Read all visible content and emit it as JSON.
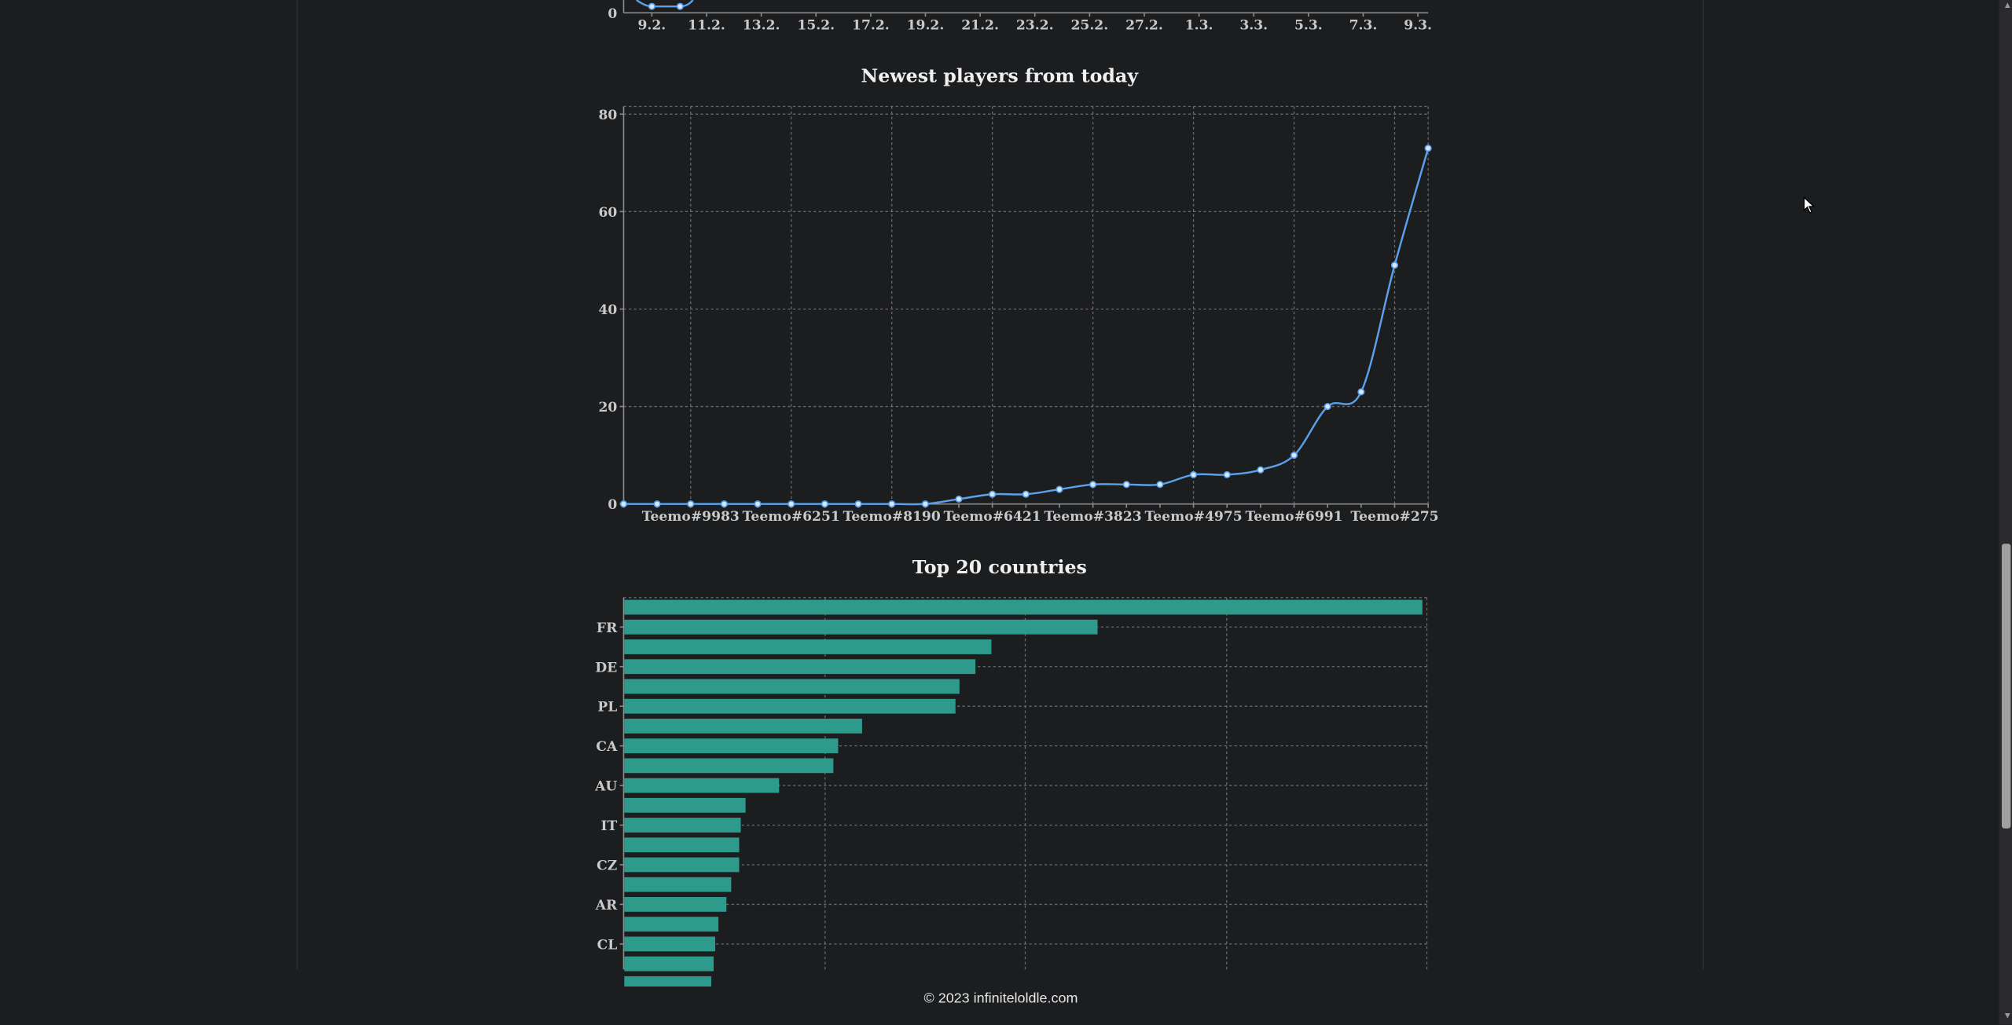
{
  "top_chart": {
    "y_tick": "0",
    "x_ticks": [
      "9.2.",
      "11.2.",
      "13.2.",
      "15.2.",
      "17.2.",
      "19.2.",
      "21.2.",
      "23.2.",
      "25.2.",
      "27.2.",
      "1.3.",
      "3.3.",
      "5.3.",
      "7.3.",
      "9.3."
    ]
  },
  "chart_data": [
    {
      "type": "line",
      "title": "Newest players from today",
      "x_tick_labels": [
        "Teemo#9983",
        "Teemo#6251",
        "Teemo#8190",
        "Teemo#6421",
        "Teemo#3823",
        "Teemo#4975",
        "Teemo#6991",
        "Teemo#275"
      ],
      "y_ticks": [
        0,
        20,
        40,
        60,
        80
      ],
      "ylim": [
        0,
        80
      ],
      "values": [
        0,
        0,
        0,
        0,
        0,
        0,
        0,
        0,
        0,
        0,
        1,
        2,
        2,
        3,
        4,
        4,
        4,
        6,
        6,
        7,
        10,
        20,
        23,
        49,
        73
      ],
      "color": "#5aa0ea",
      "grid": true
    },
    {
      "type": "bar",
      "orientation": "horizontal",
      "title": "Top 20 countries",
      "category_labels": [
        "FR",
        "DE",
        "PL",
        "CA",
        "AU",
        "IT",
        "CZ",
        "AR",
        "CL"
      ],
      "relative_values": [
        1.0,
        0.593,
        0.46,
        0.44,
        0.42,
        0.415,
        0.298,
        0.268,
        0.262,
        0.194,
        0.152,
        0.146,
        0.144,
        0.144,
        0.134,
        0.128,
        0.118,
        0.114,
        0.112,
        0.109
      ],
      "color": "#2e9a8c",
      "grid": true
    }
  ],
  "footer": {
    "text": "© 2023 infiniteloldle.com"
  }
}
